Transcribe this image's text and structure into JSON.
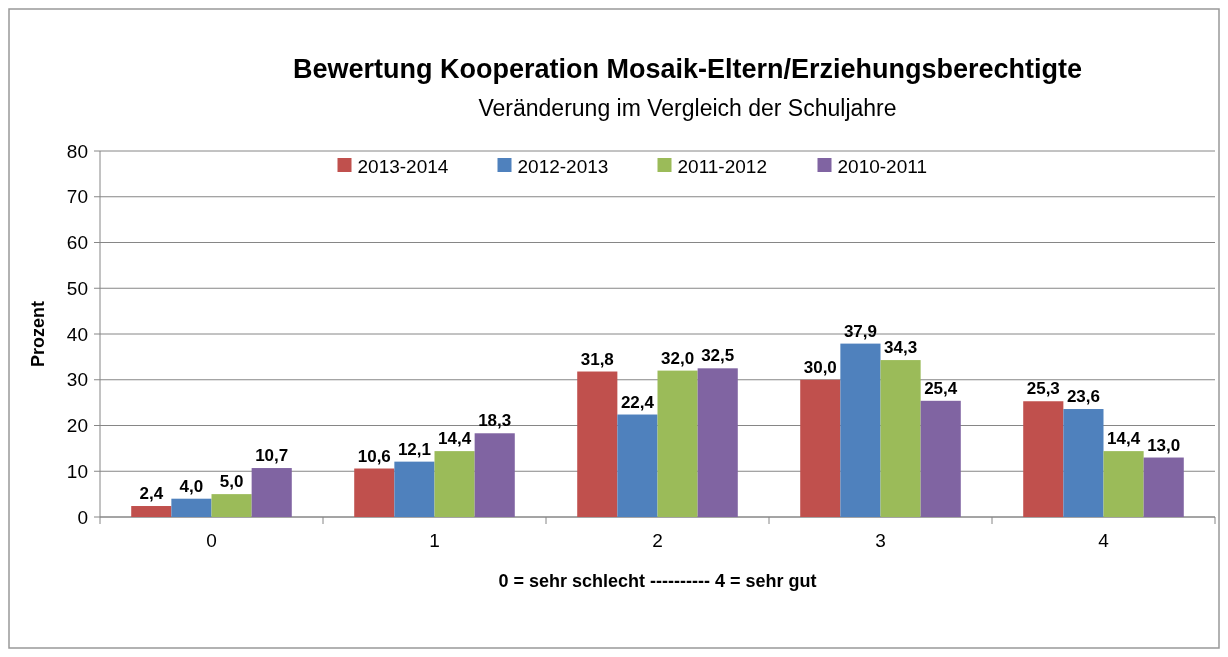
{
  "chart_data": {
    "type": "bar",
    "title": "Bewertung Kooperation Mosaik-Eltern/Erziehungsberechtigte",
    "subtitle": "Veränderung im Vergleich der Schuljahre",
    "xlabel": "0 = sehr schlecht ---------- 4 = sehr gut",
    "ylabel": "Prozent",
    "categories": [
      "0",
      "1",
      "2",
      "3",
      "4"
    ],
    "series": [
      {
        "name": "2013-2014",
        "color": "#c0504d",
        "values": [
          2.4,
          10.6,
          31.8,
          30.0,
          25.3
        ],
        "value_labels": [
          "2,4",
          "10,6",
          "31,8",
          "30,0",
          "25,3"
        ]
      },
      {
        "name": "2012-2013",
        "color": "#4f81bd",
        "values": [
          4.0,
          12.1,
          22.4,
          37.9,
          23.6
        ],
        "value_labels": [
          "4,0",
          "12,1",
          "22,4",
          "37,9",
          "23,6"
        ]
      },
      {
        "name": "2011-2012",
        "color": "#9bbb59",
        "values": [
          5.0,
          14.4,
          32.0,
          34.3,
          14.4
        ],
        "value_labels": [
          "5,0",
          "14,4",
          "32,0",
          "34,3",
          "14,4"
        ]
      },
      {
        "name": "2010-2011",
        "color": "#8064a2",
        "values": [
          10.7,
          18.3,
          32.5,
          25.4,
          13.0
        ],
        "value_labels": [
          "10,7",
          "18,3",
          "32,5",
          "25,4",
          "13,0"
        ]
      }
    ],
    "ylim": [
      0,
      80
    ],
    "yticks": [
      0,
      10,
      20,
      30,
      40,
      50,
      60,
      70,
      80
    ],
    "grid": "y",
    "legend": "top"
  }
}
